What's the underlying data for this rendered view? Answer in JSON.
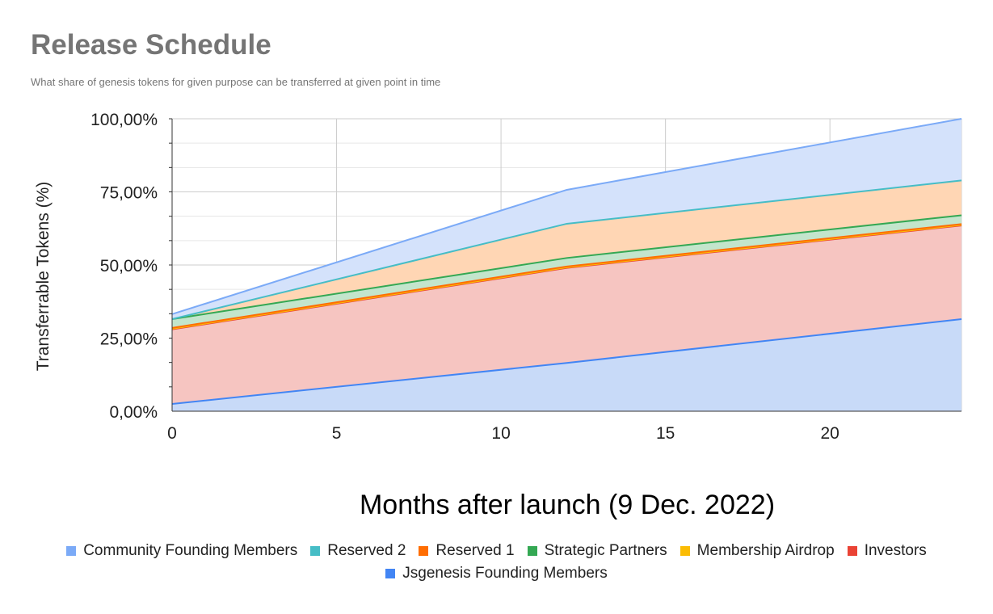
{
  "chart_data": {
    "type": "area",
    "stacked": true,
    "title": "Release Schedule",
    "subtitle": "What share of genesis tokens for given purpose can be transferred at given point in time",
    "xlabel": "Months after launch (9 Dec. 2022)",
    "ylabel": "Transferrable Tokens (%)",
    "xlim": [
      0,
      24
    ],
    "ylim": [
      0,
      100
    ],
    "x_ticks": [
      "0",
      "5",
      "10",
      "15",
      "20"
    ],
    "y_ticks": [
      "0,00%",
      "25,00%",
      "50,00%",
      "75,00%",
      "100,00%"
    ],
    "x": [
      0,
      12,
      24
    ],
    "grid": true,
    "legend_position": "bottom",
    "series": [
      {
        "name": "Jsgenesis Founding Members",
        "color": "#4285f4",
        "fill": "#c8daf8",
        "values": [
          2.5,
          16.5,
          31.5
        ]
      },
      {
        "name": "Investors",
        "color": "#ea4335",
        "fill": "#f6c5c1",
        "values": [
          25.5,
          32.5,
          32.0
        ]
      },
      {
        "name": "Membership Airdrop",
        "color": "#fbbc04",
        "fill": "#fdecb8",
        "values": [
          0.2,
          0.2,
          0.2
        ]
      },
      {
        "name": "Reserved 1",
        "color": "#ff6d01",
        "fill": "#ffd3b5",
        "values": [
          0.3,
          0.3,
          0.3
        ]
      },
      {
        "name": "Strategic Partners",
        "color": "#34a853",
        "fill": "#c3e5cc",
        "values": [
          3.0,
          2.9,
          3.0
        ]
      },
      {
        "name": "Reserved 2",
        "color": "#46bdc6",
        "fill": "#ffd6b4",
        "values": [
          0.0,
          11.7,
          11.9
        ]
      },
      {
        "name": "Community Founding Members",
        "color": "#7baaf7",
        "fill": "#d4e2fb",
        "values": [
          1.7,
          11.6,
          21.1
        ]
      }
    ],
    "legend_order": [
      "Community Founding Members",
      "Reserved 2",
      "Reserved 1",
      "Strategic Partners",
      "Membership Airdrop",
      "Investors",
      "Jsgenesis Founding Members"
    ]
  }
}
